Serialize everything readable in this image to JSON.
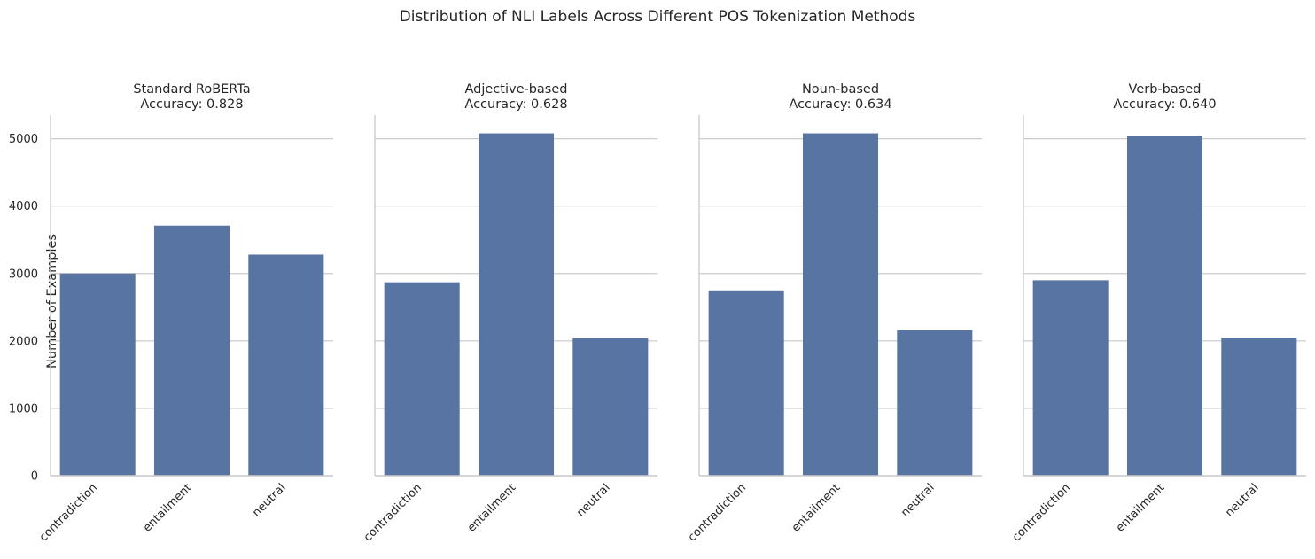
{
  "chart_data": {
    "type": "bar",
    "title": "Distribution of NLI Labels Across Different POS Tokenization Methods",
    "ylabel": "Number of Examples",
    "xlabel": "",
    "ylim": [
      0,
      5350
    ],
    "yticks": [
      0,
      1000,
      2000,
      3000,
      4000,
      5000
    ],
    "grid": "y",
    "bar_color": "#5874a3",
    "categories": [
      "contradiction",
      "entailment",
      "neutral"
    ],
    "panels": [
      {
        "title_line1": "Standard RoBERTa",
        "title_line2": "Accuracy: 0.828",
        "values": [
          3000,
          3710,
          3280
        ]
      },
      {
        "title_line1": "Adjective-based",
        "title_line2": "Accuracy: 0.628",
        "values": [
          2870,
          5080,
          2040
        ]
      },
      {
        "title_line1": "Noun-based",
        "title_line2": "Accuracy: 0.634",
        "values": [
          2750,
          5080,
          2160
        ]
      },
      {
        "title_line1": "Verb-based",
        "title_line2": "Accuracy: 0.640",
        "values": [
          2900,
          5040,
          2050
        ]
      }
    ]
  }
}
